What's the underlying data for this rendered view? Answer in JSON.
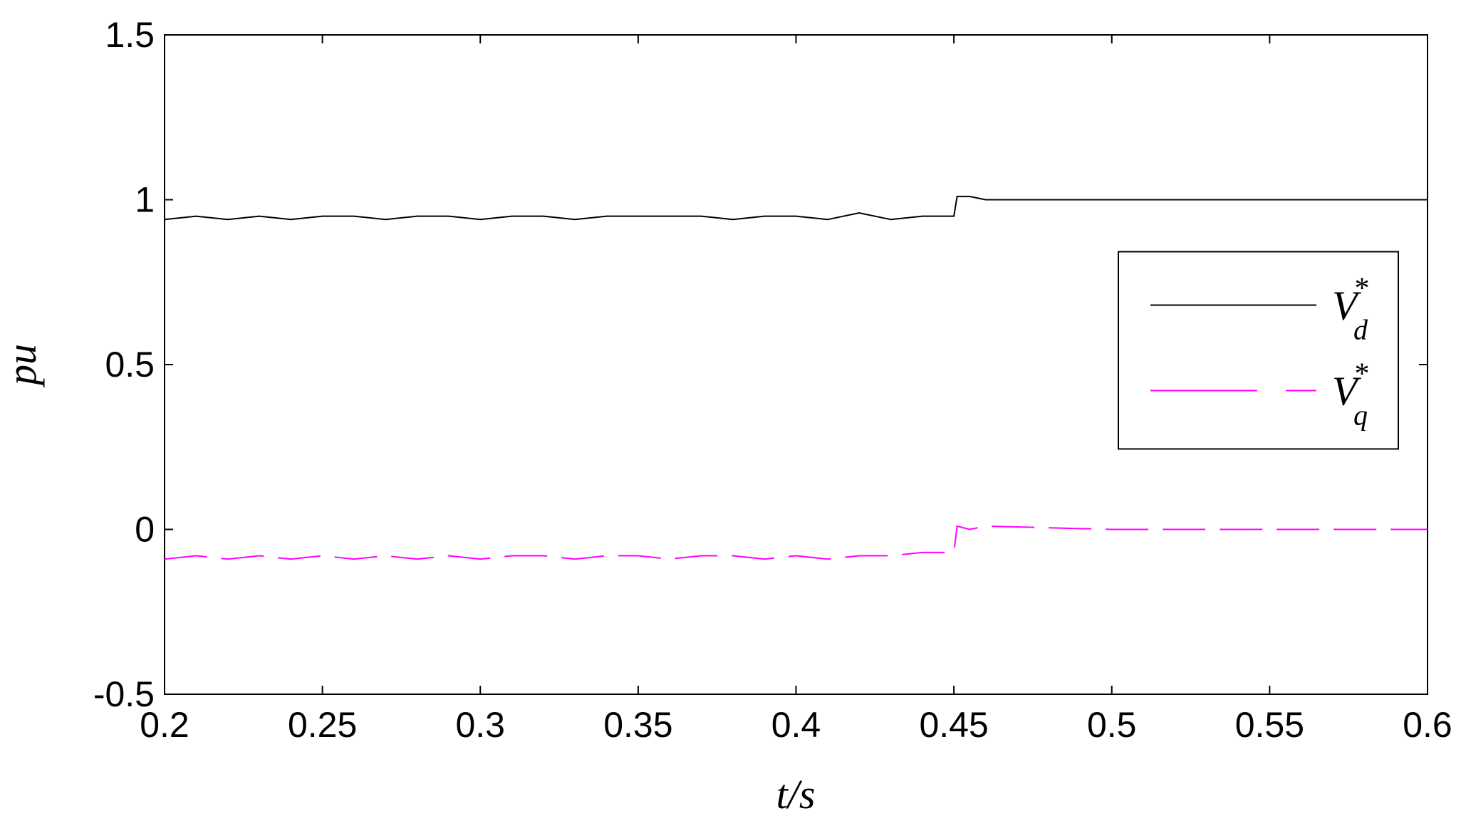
{
  "chart_data": {
    "type": "line",
    "xlabel": "t/s",
    "ylabel": "pu",
    "x": [
      0.2,
      0.21,
      0.22,
      0.23,
      0.24,
      0.25,
      0.26,
      0.27,
      0.28,
      0.29,
      0.3,
      0.31,
      0.32,
      0.33,
      0.34,
      0.35,
      0.36,
      0.37,
      0.38,
      0.39,
      0.4,
      0.41,
      0.42,
      0.43,
      0.44,
      0.45,
      0.451,
      0.455,
      0.46,
      0.5,
      0.55,
      0.6
    ],
    "series": [
      {
        "name": "V*d",
        "color": "#000000",
        "dash": false,
        "values": [
          0.94,
          0.95,
          0.94,
          0.95,
          0.94,
          0.95,
          0.95,
          0.94,
          0.95,
          0.95,
          0.94,
          0.95,
          0.95,
          0.94,
          0.95,
          0.95,
          0.95,
          0.95,
          0.94,
          0.95,
          0.95,
          0.94,
          0.96,
          0.94,
          0.95,
          0.95,
          1.01,
          1.01,
          1.0,
          1.0,
          1.0,
          1.0
        ]
      },
      {
        "name": "V*q",
        "color": "#ff00ff",
        "dash": true,
        "values": [
          -0.09,
          -0.08,
          -0.09,
          -0.08,
          -0.09,
          -0.08,
          -0.09,
          -0.08,
          -0.09,
          -0.08,
          -0.09,
          -0.08,
          -0.08,
          -0.09,
          -0.08,
          -0.08,
          -0.09,
          -0.08,
          -0.08,
          -0.09,
          -0.08,
          -0.09,
          -0.08,
          -0.08,
          -0.07,
          -0.07,
          0.01,
          0.0,
          0.01,
          0.0,
          0.0,
          0.0
        ]
      }
    ],
    "xlim": [
      0.2,
      0.6
    ],
    "xticks": [
      0.2,
      0.25,
      0.3,
      0.35,
      0.4,
      0.45,
      0.5,
      0.55,
      0.6
    ],
    "ylim": [
      -0.5,
      1.5
    ],
    "yticks": [
      -0.5,
      0,
      0.5,
      1,
      1.5
    ],
    "grid": false,
    "legend_loc": "center right"
  }
}
